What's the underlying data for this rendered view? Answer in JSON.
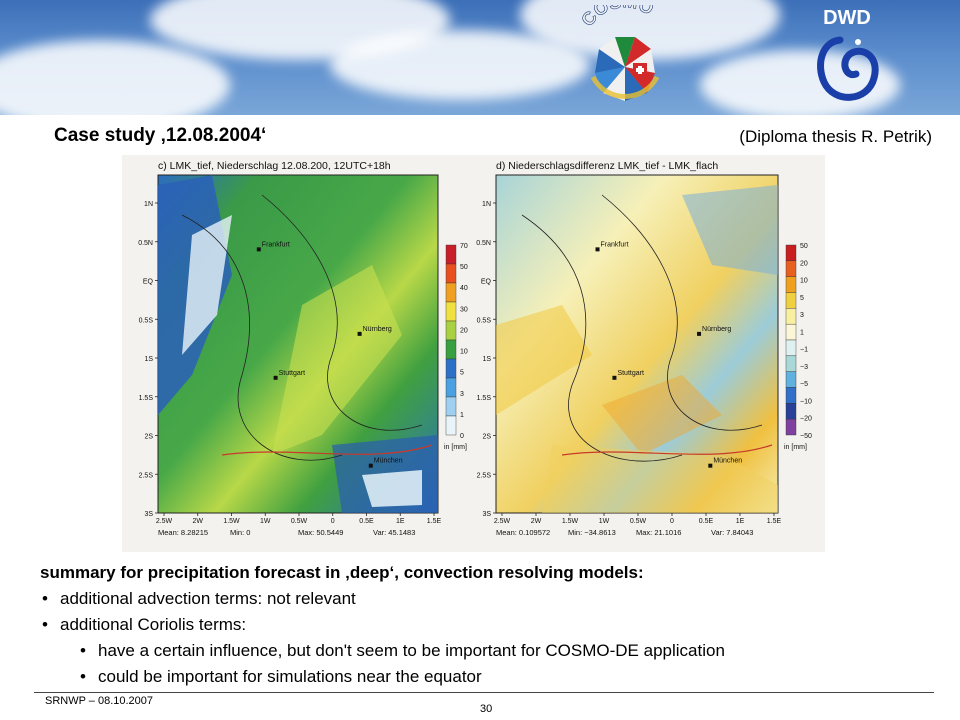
{
  "header": {
    "cosmo_logo_text": "COSMO",
    "dwd_logo_text": "DWD"
  },
  "title": "Case study ‚12.08.2004‘",
  "credit": "(Diploma thesis R. Petrik)",
  "maps": [
    {
      "title": "c) LMK_tief, Niederschlag 12.08.200, 12UTC+18h",
      "stats": [
        "Mean: 8.28215",
        "Min: 0",
        "Max: 50.5449",
        "Var: 45.1483"
      ],
      "legend_values": [
        "70",
        "50",
        "40",
        "30",
        "20",
        "10",
        "5",
        "3",
        "1",
        "0"
      ],
      "legend_colors": [
        "#c8202a",
        "#e85020",
        "#f0a020",
        "#f0e040",
        "#a8d040",
        "#38a040",
        "#2c70c8",
        "#4aa0e0",
        "#a0d0f0",
        "#e8f4fa"
      ],
      "legend_unit": "in [mm]",
      "y_ticks": [
        "1N",
        "0.5N",
        "EQ",
        "0.5S",
        "1S",
        "1.5S",
        "2S",
        "2.5S",
        "3S"
      ],
      "x_ticks": [
        "2.5W",
        "2W",
        "1.5W",
        "1W",
        "0.5W",
        "0",
        "0.5E",
        "1E",
        "1.5E"
      ],
      "city_labels": [
        "Frankfurt",
        "Nürnberg",
        "Stuttgart",
        "München"
      ]
    },
    {
      "title": "d) Niederschlagsdifferenz LMK_tief - LMK_flach",
      "stats": [
        "Mean: 0.109572",
        "Min: −34.8613",
        "Max: 21.1016",
        "Var: 7.84043"
      ],
      "legend_values": [
        "50",
        "20",
        "10",
        "5",
        "3",
        "1",
        "−1",
        "−3",
        "−5",
        "−10",
        "−20",
        "−50"
      ],
      "legend_colors": [
        "#c82020",
        "#e86020",
        "#f0a020",
        "#f0d040",
        "#f8f0a0",
        "#fbf6d8",
        "#dff0f0",
        "#a8d8d8",
        "#60b0e0",
        "#3070c8",
        "#284098",
        "#8040a0"
      ],
      "legend_unit": "in [mm]",
      "y_ticks": [
        "1N",
        "0.5N",
        "EQ",
        "0.5S",
        "1S",
        "1.5S",
        "2S",
        "2.5S",
        "3S"
      ],
      "x_ticks": [
        "2.5W",
        "2W",
        "1.5W",
        "1W",
        "0.5W",
        "0",
        "0.5E",
        "1E",
        "1.5E"
      ],
      "city_labels": [
        "Frankfurt",
        "Nürnberg",
        "Stuttgart",
        "München"
      ]
    }
  ],
  "summary": {
    "heading": "summary for precipitation forecast in ‚deep‘, convection resolving models:",
    "item1": "additional advection terms: not relevant",
    "item2": "additional Coriolis terms:",
    "sub1": "have a certain influence, but don't seem to be important for COSMO-DE application",
    "sub2": "could be important for simulations near the equator"
  },
  "footer": {
    "left": "SRNWP  – 08.10.2007",
    "page": "30"
  }
}
